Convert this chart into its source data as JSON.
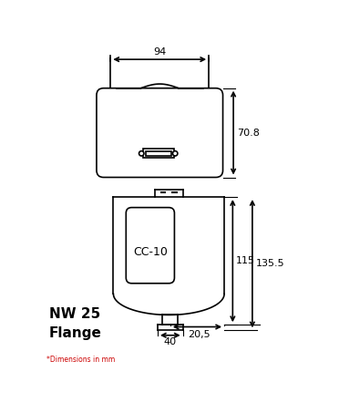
{
  "bg_color": "#ffffff",
  "line_color": "#000000",
  "dim_94": "94",
  "dim_70_8": "70.8",
  "dim_115": "115",
  "dim_135_5": "135.5",
  "dim_20_5": "20,5",
  "dim_40": "40",
  "label_nw25": "NW 25\nFlange",
  "label_cc10": "CC-10",
  "footnote": "*Dimensions in mm"
}
